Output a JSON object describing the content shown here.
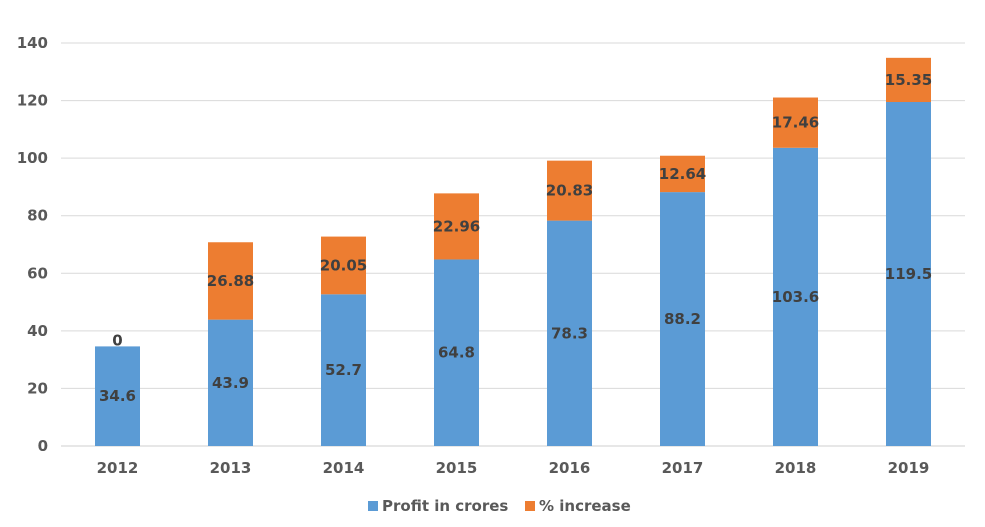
{
  "chart_data": {
    "type": "bar",
    "stacked": true,
    "categories": [
      "2012",
      "2013",
      "2014",
      "2015",
      "2016",
      "2017",
      "2018",
      "2019"
    ],
    "series": [
      {
        "name": "Profit in crores",
        "color": "#5b9bd5",
        "values": [
          34.6,
          43.9,
          52.7,
          64.8,
          78.3,
          88.2,
          103.6,
          119.5
        ],
        "labels": [
          "34.6",
          "43.9",
          "52.7",
          "64.8",
          "78.3",
          "88.2",
          "103.6",
          "119.5"
        ]
      },
      {
        "name": "% increase",
        "color": "#ed7d31",
        "values": [
          0,
          26.88,
          20.05,
          22.96,
          20.83,
          12.64,
          17.46,
          15.35
        ],
        "labels": [
          "0",
          "26.88",
          "20.05",
          "22.96",
          "20.83",
          "12.64",
          "17.46",
          "15.35"
        ]
      }
    ],
    "ylim": [
      0,
      140
    ],
    "yticks": [
      "0",
      "20",
      "40",
      "60",
      "80",
      "100",
      "120",
      "140"
    ],
    "grid": true,
    "legend_position": "bottom",
    "title": "",
    "xlabel": "",
    "ylabel": ""
  }
}
